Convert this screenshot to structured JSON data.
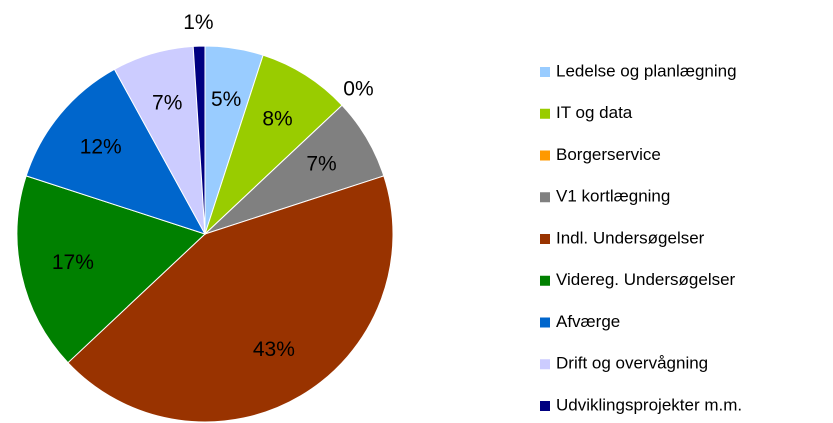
{
  "chart_data": {
    "type": "pie",
    "categories": [
      "Ledelse og planlægning",
      "IT og data",
      "Borgerservice",
      "V1 kortlægning",
      "Indl. Undersøgelser",
      "Videreg. Undersøgelser",
      "Afværge",
      "Drift og overvågning",
      "Udviklingsprojekter m.m."
    ],
    "values": [
      5,
      8,
      0,
      7,
      43,
      17,
      12,
      7,
      1
    ],
    "value_labels": [
      "5%",
      "8%",
      "0%",
      "7%",
      "43%",
      "17%",
      "12%",
      "7%",
      "1%"
    ],
    "colors": [
      "#99ccff",
      "#99cc00",
      "#ff9900",
      "#808080",
      "#993300",
      "#008000",
      "#0066cc",
      "#ccccff",
      "#000080"
    ],
    "legend": "right"
  }
}
